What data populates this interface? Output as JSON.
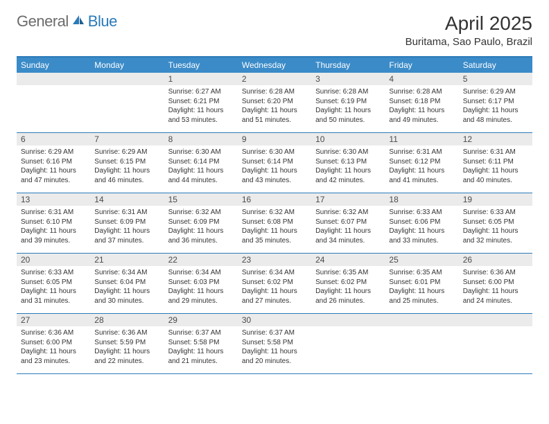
{
  "brand": {
    "general": "General",
    "blue": "Blue"
  },
  "title": "April 2025",
  "location": "Buritama, Sao Paulo, Brazil",
  "colors": {
    "header_bar": "#3b8bc8",
    "accent_border": "#2a7ab8",
    "daynum_bg": "#ebebeb",
    "text": "#333333",
    "logo_gray": "#6b6b6b",
    "logo_blue": "#2a7ab8",
    "page_bg": "#ffffff"
  },
  "weekdays": [
    "Sunday",
    "Monday",
    "Tuesday",
    "Wednesday",
    "Thursday",
    "Friday",
    "Saturday"
  ],
  "weeks": [
    [
      null,
      null,
      {
        "n": "1",
        "sr": "6:27 AM",
        "ss": "6:21 PM",
        "dl": "11 hours and 53 minutes."
      },
      {
        "n": "2",
        "sr": "6:28 AM",
        "ss": "6:20 PM",
        "dl": "11 hours and 51 minutes."
      },
      {
        "n": "3",
        "sr": "6:28 AM",
        "ss": "6:19 PM",
        "dl": "11 hours and 50 minutes."
      },
      {
        "n": "4",
        "sr": "6:28 AM",
        "ss": "6:18 PM",
        "dl": "11 hours and 49 minutes."
      },
      {
        "n": "5",
        "sr": "6:29 AM",
        "ss": "6:17 PM",
        "dl": "11 hours and 48 minutes."
      }
    ],
    [
      {
        "n": "6",
        "sr": "6:29 AM",
        "ss": "6:16 PM",
        "dl": "11 hours and 47 minutes."
      },
      {
        "n": "7",
        "sr": "6:29 AM",
        "ss": "6:15 PM",
        "dl": "11 hours and 46 minutes."
      },
      {
        "n": "8",
        "sr": "6:30 AM",
        "ss": "6:14 PM",
        "dl": "11 hours and 44 minutes."
      },
      {
        "n": "9",
        "sr": "6:30 AM",
        "ss": "6:14 PM",
        "dl": "11 hours and 43 minutes."
      },
      {
        "n": "10",
        "sr": "6:30 AM",
        "ss": "6:13 PM",
        "dl": "11 hours and 42 minutes."
      },
      {
        "n": "11",
        "sr": "6:31 AM",
        "ss": "6:12 PM",
        "dl": "11 hours and 41 minutes."
      },
      {
        "n": "12",
        "sr": "6:31 AM",
        "ss": "6:11 PM",
        "dl": "11 hours and 40 minutes."
      }
    ],
    [
      {
        "n": "13",
        "sr": "6:31 AM",
        "ss": "6:10 PM",
        "dl": "11 hours and 39 minutes."
      },
      {
        "n": "14",
        "sr": "6:31 AM",
        "ss": "6:09 PM",
        "dl": "11 hours and 37 minutes."
      },
      {
        "n": "15",
        "sr": "6:32 AM",
        "ss": "6:09 PM",
        "dl": "11 hours and 36 minutes."
      },
      {
        "n": "16",
        "sr": "6:32 AM",
        "ss": "6:08 PM",
        "dl": "11 hours and 35 minutes."
      },
      {
        "n": "17",
        "sr": "6:32 AM",
        "ss": "6:07 PM",
        "dl": "11 hours and 34 minutes."
      },
      {
        "n": "18",
        "sr": "6:33 AM",
        "ss": "6:06 PM",
        "dl": "11 hours and 33 minutes."
      },
      {
        "n": "19",
        "sr": "6:33 AM",
        "ss": "6:05 PM",
        "dl": "11 hours and 32 minutes."
      }
    ],
    [
      {
        "n": "20",
        "sr": "6:33 AM",
        "ss": "6:05 PM",
        "dl": "11 hours and 31 minutes."
      },
      {
        "n": "21",
        "sr": "6:34 AM",
        "ss": "6:04 PM",
        "dl": "11 hours and 30 minutes."
      },
      {
        "n": "22",
        "sr": "6:34 AM",
        "ss": "6:03 PM",
        "dl": "11 hours and 29 minutes."
      },
      {
        "n": "23",
        "sr": "6:34 AM",
        "ss": "6:02 PM",
        "dl": "11 hours and 27 minutes."
      },
      {
        "n": "24",
        "sr": "6:35 AM",
        "ss": "6:02 PM",
        "dl": "11 hours and 26 minutes."
      },
      {
        "n": "25",
        "sr": "6:35 AM",
        "ss": "6:01 PM",
        "dl": "11 hours and 25 minutes."
      },
      {
        "n": "26",
        "sr": "6:36 AM",
        "ss": "6:00 PM",
        "dl": "11 hours and 24 minutes."
      }
    ],
    [
      {
        "n": "27",
        "sr": "6:36 AM",
        "ss": "6:00 PM",
        "dl": "11 hours and 23 minutes."
      },
      {
        "n": "28",
        "sr": "6:36 AM",
        "ss": "5:59 PM",
        "dl": "11 hours and 22 minutes."
      },
      {
        "n": "29",
        "sr": "6:37 AM",
        "ss": "5:58 PM",
        "dl": "11 hours and 21 minutes."
      },
      {
        "n": "30",
        "sr": "6:37 AM",
        "ss": "5:58 PM",
        "dl": "11 hours and 20 minutes."
      },
      null,
      null,
      null
    ]
  ],
  "labels": {
    "sunrise": "Sunrise:",
    "sunset": "Sunset:",
    "daylight": "Daylight:"
  }
}
